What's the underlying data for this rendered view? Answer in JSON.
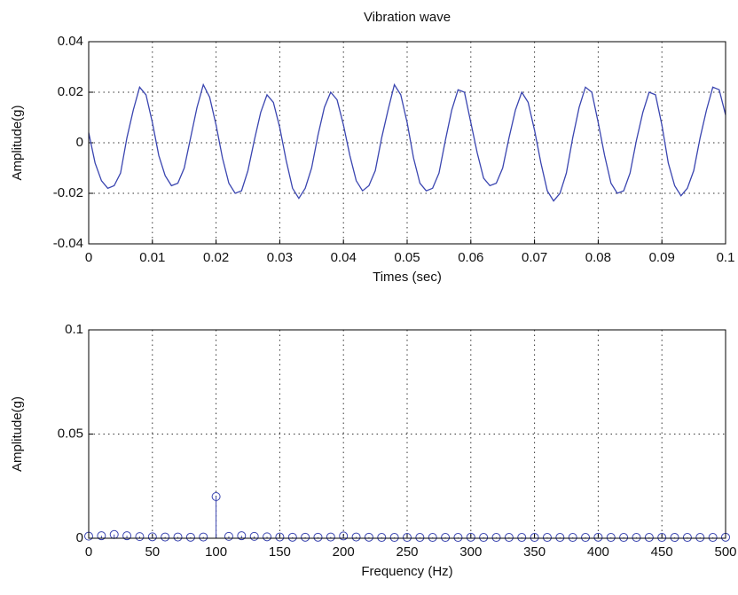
{
  "chart_data": [
    {
      "type": "line",
      "title": "Vibration wave",
      "x_label": "Times (sec)",
      "y_label": "Amplitude(g)",
      "x": [
        0,
        0.001,
        0.002,
        0.003,
        0.004,
        0.005,
        0.006,
        0.007,
        0.008,
        0.009,
        0.01,
        0.011,
        0.012,
        0.013,
        0.014,
        0.015,
        0.016,
        0.017,
        0.018,
        0.019,
        0.02,
        0.021,
        0.022,
        0.023,
        0.024,
        0.025,
        0.026,
        0.027,
        0.028,
        0.029,
        0.03,
        0.031,
        0.032,
        0.033,
        0.034,
        0.035,
        0.036,
        0.037,
        0.038,
        0.039,
        0.04,
        0.041,
        0.042,
        0.043,
        0.044,
        0.045,
        0.046,
        0.047,
        0.048,
        0.049,
        0.05,
        0.051,
        0.052,
        0.053,
        0.054,
        0.055,
        0.056,
        0.057,
        0.058,
        0.059,
        0.06,
        0.061,
        0.062,
        0.063,
        0.064,
        0.065,
        0.066,
        0.067,
        0.068,
        0.069,
        0.07,
        0.071,
        0.072,
        0.073,
        0.074,
        0.075,
        0.076,
        0.077,
        0.078,
        0.079,
        0.08,
        0.081,
        0.082,
        0.083,
        0.084,
        0.085,
        0.086,
        0.087,
        0.088,
        0.089,
        0.09,
        0.091,
        0.092,
        0.093,
        0.094,
        0.095,
        0.096,
        0.097,
        0.098,
        0.099,
        0.1
      ],
      "series": [
        {
          "color": "#3a45b0",
          "values": [
            0.004,
            -0.008,
            -0.015,
            -0.018,
            -0.017,
            -0.012,
            0.002,
            0.013,
            0.022,
            0.019,
            0.008,
            -0.005,
            -0.013,
            -0.017,
            -0.016,
            -0.01,
            0.002,
            0.014,
            0.023,
            0.018,
            0.007,
            -0.006,
            -0.016,
            -0.02,
            -0.019,
            -0.011,
            0.001,
            0.012,
            0.019,
            0.016,
            0.006,
            -0.007,
            -0.018,
            -0.022,
            -0.018,
            -0.01,
            0.003,
            0.014,
            0.02,
            0.017,
            0.007,
            -0.005,
            -0.015,
            -0.019,
            -0.017,
            -0.011,
            0.002,
            0.013,
            0.023,
            0.019,
            0.008,
            -0.006,
            -0.016,
            -0.019,
            -0.018,
            -0.012,
            0.001,
            0.013,
            0.021,
            0.02,
            0.008,
            -0.004,
            -0.014,
            -0.017,
            -0.016,
            -0.01,
            0.002,
            0.013,
            0.02,
            0.016,
            0.005,
            -0.008,
            -0.019,
            -0.023,
            -0.02,
            -0.012,
            0.002,
            0.014,
            0.022,
            0.02,
            0.008,
            -0.005,
            -0.016,
            -0.02,
            -0.019,
            -0.012,
            0.001,
            0.012,
            0.02,
            0.019,
            0.007,
            -0.008,
            -0.017,
            -0.021,
            -0.018,
            -0.011,
            0.002,
            0.013,
            0.022,
            0.021,
            0.011
          ]
        }
      ],
      "xlim": [
        0,
        0.1
      ],
      "xticks": [
        0,
        0.01,
        0.02,
        0.03,
        0.04,
        0.05,
        0.06,
        0.07,
        0.08,
        0.09,
        0.1
      ],
      "ylim": [
        -0.04,
        0.04
      ],
      "yticks": [
        -0.04,
        -0.02,
        0,
        0.02,
        0.04
      ],
      "grid": true
    },
    {
      "type": "stem",
      "x_label": "Frequency (Hz)",
      "y_label": "Amplitude(g)",
      "x": [
        0,
        10,
        20,
        30,
        40,
        50,
        60,
        70,
        80,
        90,
        100,
        110,
        120,
        130,
        140,
        150,
        160,
        170,
        180,
        190,
        200,
        210,
        220,
        230,
        240,
        250,
        260,
        270,
        280,
        290,
        300,
        310,
        320,
        330,
        340,
        350,
        360,
        370,
        380,
        390,
        400,
        410,
        420,
        430,
        440,
        450,
        460,
        470,
        480,
        490,
        500
      ],
      "series": [
        {
          "color": "#3a45b0",
          "values": [
            0.001,
            0.0012,
            0.0018,
            0.0012,
            0.0008,
            0.0007,
            0.0006,
            0.0006,
            0.0005,
            0.0006,
            0.02,
            0.0009,
            0.0012,
            0.0009,
            0.0007,
            0.0006,
            0.0005,
            0.0005,
            0.0005,
            0.0006,
            0.0011,
            0.0006,
            0.0005,
            0.0004,
            0.0004,
            0.0004,
            0.0004,
            0.0004,
            0.0004,
            0.0004,
            0.0005,
            0.0004,
            0.0004,
            0.0004,
            0.0004,
            0.0004,
            0.0004,
            0.0004,
            0.0004,
            0.0004,
            0.0005,
            0.0004,
            0.0004,
            0.0004,
            0.0004,
            0.0004,
            0.0004,
            0.0004,
            0.0004,
            0.0004,
            0.0005
          ]
        }
      ],
      "xlim": [
        0,
        500
      ],
      "xticks": [
        0,
        50,
        100,
        150,
        200,
        250,
        300,
        350,
        400,
        450,
        500
      ],
      "ylim": [
        0,
        0.1
      ],
      "yticks": [
        0,
        0.05,
        0.1
      ],
      "grid": true
    }
  ]
}
